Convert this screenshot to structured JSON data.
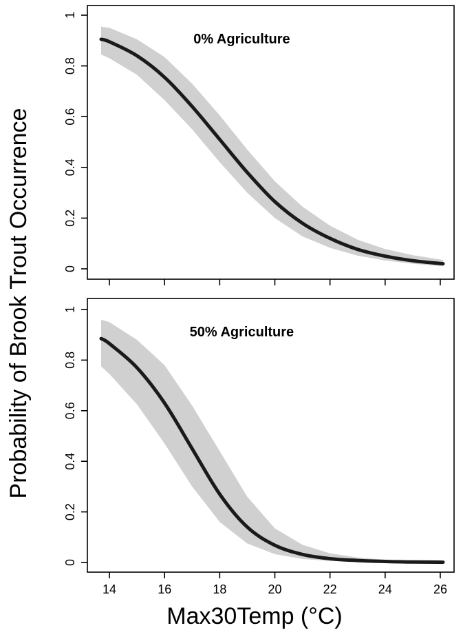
{
  "chart_data": [
    {
      "type": "line",
      "title": "0% Agriculture",
      "xlabel": "Max30Temp (°C)",
      "ylabel": "Probability of Brook Trout Occurrence",
      "xlim": [
        13.2,
        26.5
      ],
      "ylim": [
        0,
        1
      ],
      "x_ticks": [
        14,
        16,
        18,
        20,
        22,
        24,
        26
      ],
      "x_tick_labels": [],
      "y_ticks": [
        0,
        0.2,
        0.4,
        0.6,
        0.8,
        1
      ],
      "y_tick_labels": [
        "0",
        "0.2",
        "0.4",
        "0.6",
        "0.8",
        "1"
      ],
      "series": [
        {
          "x": [
            13.7,
            14,
            15,
            16,
            17,
            18,
            19,
            20,
            21,
            22,
            23,
            24,
            25,
            26.1
          ],
          "y": [
            0.905,
            0.895,
            0.84,
            0.755,
            0.64,
            0.51,
            0.38,
            0.265,
            0.18,
            0.12,
            0.077,
            0.05,
            0.032,
            0.02
          ],
          "lower": [
            0.845,
            0.83,
            0.765,
            0.665,
            0.55,
            0.42,
            0.3,
            0.2,
            0.128,
            0.083,
            0.052,
            0.033,
            0.02,
            0.01
          ],
          "upper": [
            0.955,
            0.95,
            0.905,
            0.835,
            0.73,
            0.605,
            0.47,
            0.345,
            0.245,
            0.17,
            0.115,
            0.078,
            0.054,
            0.035
          ]
        }
      ],
      "colors": {
        "line": "#1a1a1a",
        "band": "#d0d0d0"
      }
    },
    {
      "type": "line",
      "title": "50% Agriculture",
      "xlabel": "Max30Temp (°C)",
      "ylabel": "Probability of Brook Trout Occurrence",
      "xlim": [
        13.2,
        26.5
      ],
      "ylim": [
        0,
        1
      ],
      "x_ticks": [
        14,
        16,
        18,
        20,
        22,
        24,
        26
      ],
      "x_tick_labels": [
        "14",
        "16",
        "18",
        "20",
        "22",
        "24",
        "26"
      ],
      "y_ticks": [
        0,
        0.2,
        0.4,
        0.6,
        0.8,
        1
      ],
      "y_tick_labels": [
        "0",
        "0.2",
        "0.4",
        "0.6",
        "0.8",
        "1"
      ],
      "series": [
        {
          "x": [
            13.7,
            14,
            15,
            16,
            17,
            18,
            19,
            20,
            21,
            22,
            23,
            24,
            25,
            26.1
          ],
          "y": [
            0.885,
            0.865,
            0.77,
            0.63,
            0.45,
            0.27,
            0.14,
            0.068,
            0.032,
            0.015,
            0.008,
            0.004,
            0.002,
            0.001
          ],
          "lower": [
            0.775,
            0.745,
            0.625,
            0.47,
            0.3,
            0.16,
            0.075,
            0.033,
            0.014,
            0.006,
            0.003,
            0.001,
            0.0,
            0.0
          ],
          "upper": [
            0.96,
            0.95,
            0.88,
            0.78,
            0.62,
            0.44,
            0.26,
            0.135,
            0.07,
            0.036,
            0.02,
            0.011,
            0.006,
            0.004
          ]
        }
      ],
      "colors": {
        "line": "#1a1a1a",
        "band": "#d0d0d0"
      }
    }
  ]
}
